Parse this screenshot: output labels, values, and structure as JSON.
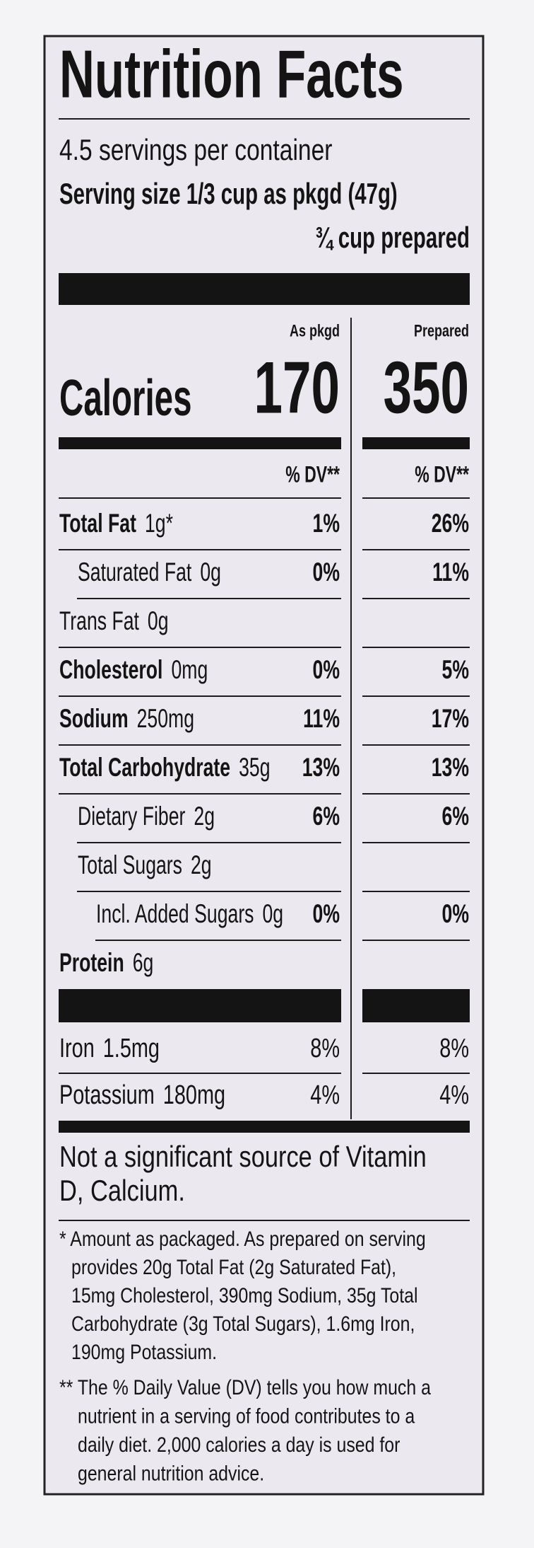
{
  "header": {
    "title": "Nutrition Facts",
    "servings": "4.5 servings per container",
    "serving_size": "Serving size 1/3 cup as pkgd (47g)",
    "prepared_size": "¾ cup prepared"
  },
  "columns": {
    "as_pkgd": "As pkgd",
    "prepared": "Prepared"
  },
  "calories": {
    "label": "Calories",
    "as_pkgd": 170,
    "prepared": 350
  },
  "dv_header": {
    "as_pkgd": "% DV**",
    "prepared": "% DV**"
  },
  "nutrients": [
    {
      "name": "Total Fat",
      "amount": "1g*",
      "dv_pkgd": "1%",
      "dv_prepared": "26%"
    },
    {
      "name": "Saturated Fat",
      "amount": "0g",
      "dv_pkgd": "0%",
      "dv_prepared": "11%"
    },
    {
      "name": "Trans Fat",
      "amount": "0g"
    },
    {
      "name": "Cholesterol",
      "amount": "0mg",
      "dv_pkgd": "0%",
      "dv_prepared": "5%"
    },
    {
      "name": "Sodium",
      "amount": "250mg",
      "dv_pkgd": "11%",
      "dv_prepared": "17%"
    },
    {
      "name": "Total Carbohydrate",
      "amount": "35g",
      "dv_pkgd": "13%",
      "dv_prepared": "13%"
    },
    {
      "name": "Dietary Fiber",
      "amount": "2g",
      "dv_pkgd": "6%",
      "dv_prepared": "6%"
    },
    {
      "name": "Total Sugars",
      "amount": "2g"
    },
    {
      "name": "Incl. Added Sugars",
      "amount": "0g",
      "dv_pkgd": "0%",
      "dv_prepared": "0%"
    },
    {
      "name": "Protein",
      "amount": "6g"
    }
  ],
  "minerals": [
    {
      "name": "Iron",
      "amount": "1.5mg",
      "dv_pkgd": "8%",
      "dv_prepared": "8%"
    },
    {
      "name": "Potassium",
      "amount": "180mg",
      "dv_pkgd": "4%",
      "dv_prepared": "4%"
    }
  ],
  "not_significant": [
    "Not a significant source of Vitamin",
    "D, Calcium."
  ],
  "footnote_1": [
    "* Amount as packaged. As prepared on serving",
    "provides 20g Total Fat (2g Saturated Fat),",
    "15mg Cholesterol, 390mg Sodium, 35g Total",
    "Carbohydrate (3g Total Sugars), 1.6mg Iron,",
    "190mg Potassium."
  ],
  "footnote_2": [
    "** The % Daily Value (DV) tells you how much a",
    "nutrient in a serving of food contributes to a",
    "daily diet. 2,000 calories a day is used for",
    "general nutrition advice."
  ]
}
